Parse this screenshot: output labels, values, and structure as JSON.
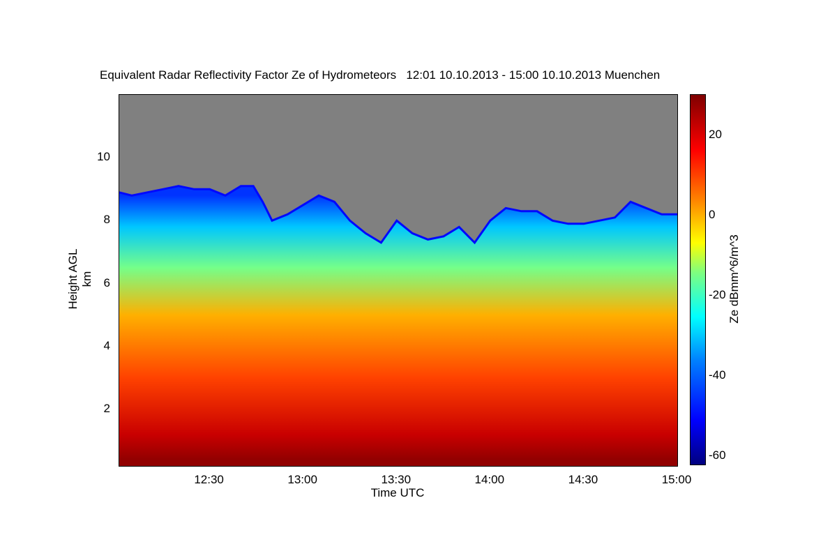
{
  "chart_data": {
    "type": "heatmap",
    "title": "Equivalent Radar Reflectivity Factor Ze of Hydrometeors   12:01 10.10.2013 - 15:00 10.10.2013 Muenchen",
    "xlabel": "Time UTC",
    "ylabel": "Height AGL km",
    "colorbar_label": "Ze dBmm^6/m^3",
    "x_ticks": [
      "12:30",
      "13:00",
      "13:30",
      "14:00",
      "14:30",
      "15:00"
    ],
    "x_tick_minutes": [
      30,
      60,
      90,
      120,
      150,
      180
    ],
    "xlim_minutes": [
      1,
      180
    ],
    "y_ticks": [
      "2",
      "4",
      "6",
      "8",
      "10"
    ],
    "y_tick_values": [
      2,
      4,
      6,
      8,
      10
    ],
    "ylim": [
      0.2,
      12
    ],
    "colorbar_ticks": [
      "20",
      "0",
      "-20",
      "-40",
      "-60"
    ],
    "colorbar_tick_values": [
      20,
      0,
      -20,
      -40,
      -60
    ],
    "clim": [
      -62,
      30
    ],
    "no_data_color": "#808080",
    "cloud_top_km": [
      [
        1,
        8.9
      ],
      [
        5,
        8.8
      ],
      [
        10,
        8.9
      ],
      [
        15,
        9.0
      ],
      [
        20,
        9.1
      ],
      [
        25,
        9.0
      ],
      [
        30,
        9.0
      ],
      [
        35,
        8.8
      ],
      [
        40,
        9.1
      ],
      [
        44,
        9.1
      ],
      [
        47,
        8.6
      ],
      [
        50,
        8.0
      ],
      [
        55,
        8.2
      ],
      [
        60,
        8.5
      ],
      [
        65,
        8.8
      ],
      [
        70,
        8.6
      ],
      [
        75,
        8.0
      ],
      [
        80,
        7.6
      ],
      [
        85,
        7.3
      ],
      [
        90,
        8.0
      ],
      [
        95,
        7.6
      ],
      [
        100,
        7.4
      ],
      [
        105,
        7.5
      ],
      [
        110,
        7.8
      ],
      [
        115,
        7.3
      ],
      [
        120,
        8.0
      ],
      [
        125,
        8.4
      ],
      [
        130,
        8.3
      ],
      [
        135,
        8.3
      ],
      [
        140,
        8.0
      ],
      [
        145,
        7.9
      ],
      [
        150,
        7.9
      ],
      [
        155,
        8.0
      ],
      [
        160,
        8.1
      ],
      [
        165,
        8.6
      ],
      [
        170,
        8.4
      ],
      [
        175,
        8.2
      ],
      [
        180,
        8.2
      ]
    ],
    "ze_layers_dbz": [
      {
        "height_km": 0.4,
        "value": 28
      },
      {
        "height_km": 1.2,
        "value": 22
      },
      {
        "height_km": 3.0,
        "value": 10
      },
      {
        "height_km": 5.0,
        "value": 0
      },
      {
        "height_km": 6.5,
        "value": -15
      },
      {
        "height_km": 7.8,
        "value": -30
      },
      {
        "height_km": 8.8,
        "value": -45
      }
    ]
  }
}
